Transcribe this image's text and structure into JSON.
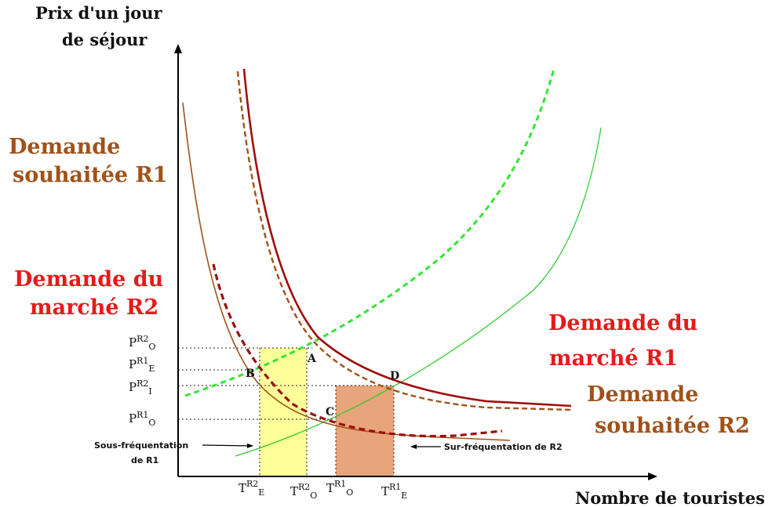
{
  "axes": {
    "y_title_line1": "Prix d'un jour",
    "y_title_line2": "de séjour",
    "x_title": "Nombre de touristes"
  },
  "labels": {
    "demande_souhaitee_r1_line1": "Demande",
    "demande_souhaitee_r1_line2": "souhaitée R1",
    "demande_marche_r2_line1": "Demande du",
    "demande_marche_r2_line2": "marché R2",
    "demande_marche_r1_line1": "Demande du",
    "demande_marche_r1_line2": "marché R1",
    "demande_souhaitee_r2_line1": "Demande",
    "demande_souhaitee_r2_line2": "souhaitée R2"
  },
  "points": {
    "A": "A",
    "B": "B",
    "C": "C",
    "D": "D"
  },
  "y_ticks": [
    {
      "base": "P",
      "sup": "R2",
      "sub": "O"
    },
    {
      "base": "P",
      "sup": "R1",
      "sub": "E"
    },
    {
      "base": "P",
      "sup": "R2",
      "sub": "I"
    },
    {
      "base": "P",
      "sup": "R1",
      "sub": "O"
    }
  ],
  "x_ticks": [
    {
      "base": "T",
      "sup": "R2",
      "sub": "E"
    },
    {
      "base": "T",
      "sup": "R2",
      "sub": "O"
    },
    {
      "base": "T",
      "sup": "R1",
      "sub": "O"
    },
    {
      "base": "T",
      "sup": "R1",
      "sub": "E"
    }
  ],
  "notes": {
    "sous_line1": "Sous-fréquentation",
    "sous_line2": "de R1",
    "sur": "Sur-fréquentation de R2"
  },
  "colors": {
    "marche_r1": "#a00d0d",
    "souhaitee_r1": "#a0521a",
    "marche_r2": "#9b1010",
    "souhaitee_r2": "#a0521a",
    "offre_r1": "#33cc33",
    "offre_r2": "#33e633",
    "yellow_zone": "#ffff99",
    "orange_zone": "#e8a47a",
    "label_red": "#e61a1a",
    "label_brown": "#a0521a"
  }
}
